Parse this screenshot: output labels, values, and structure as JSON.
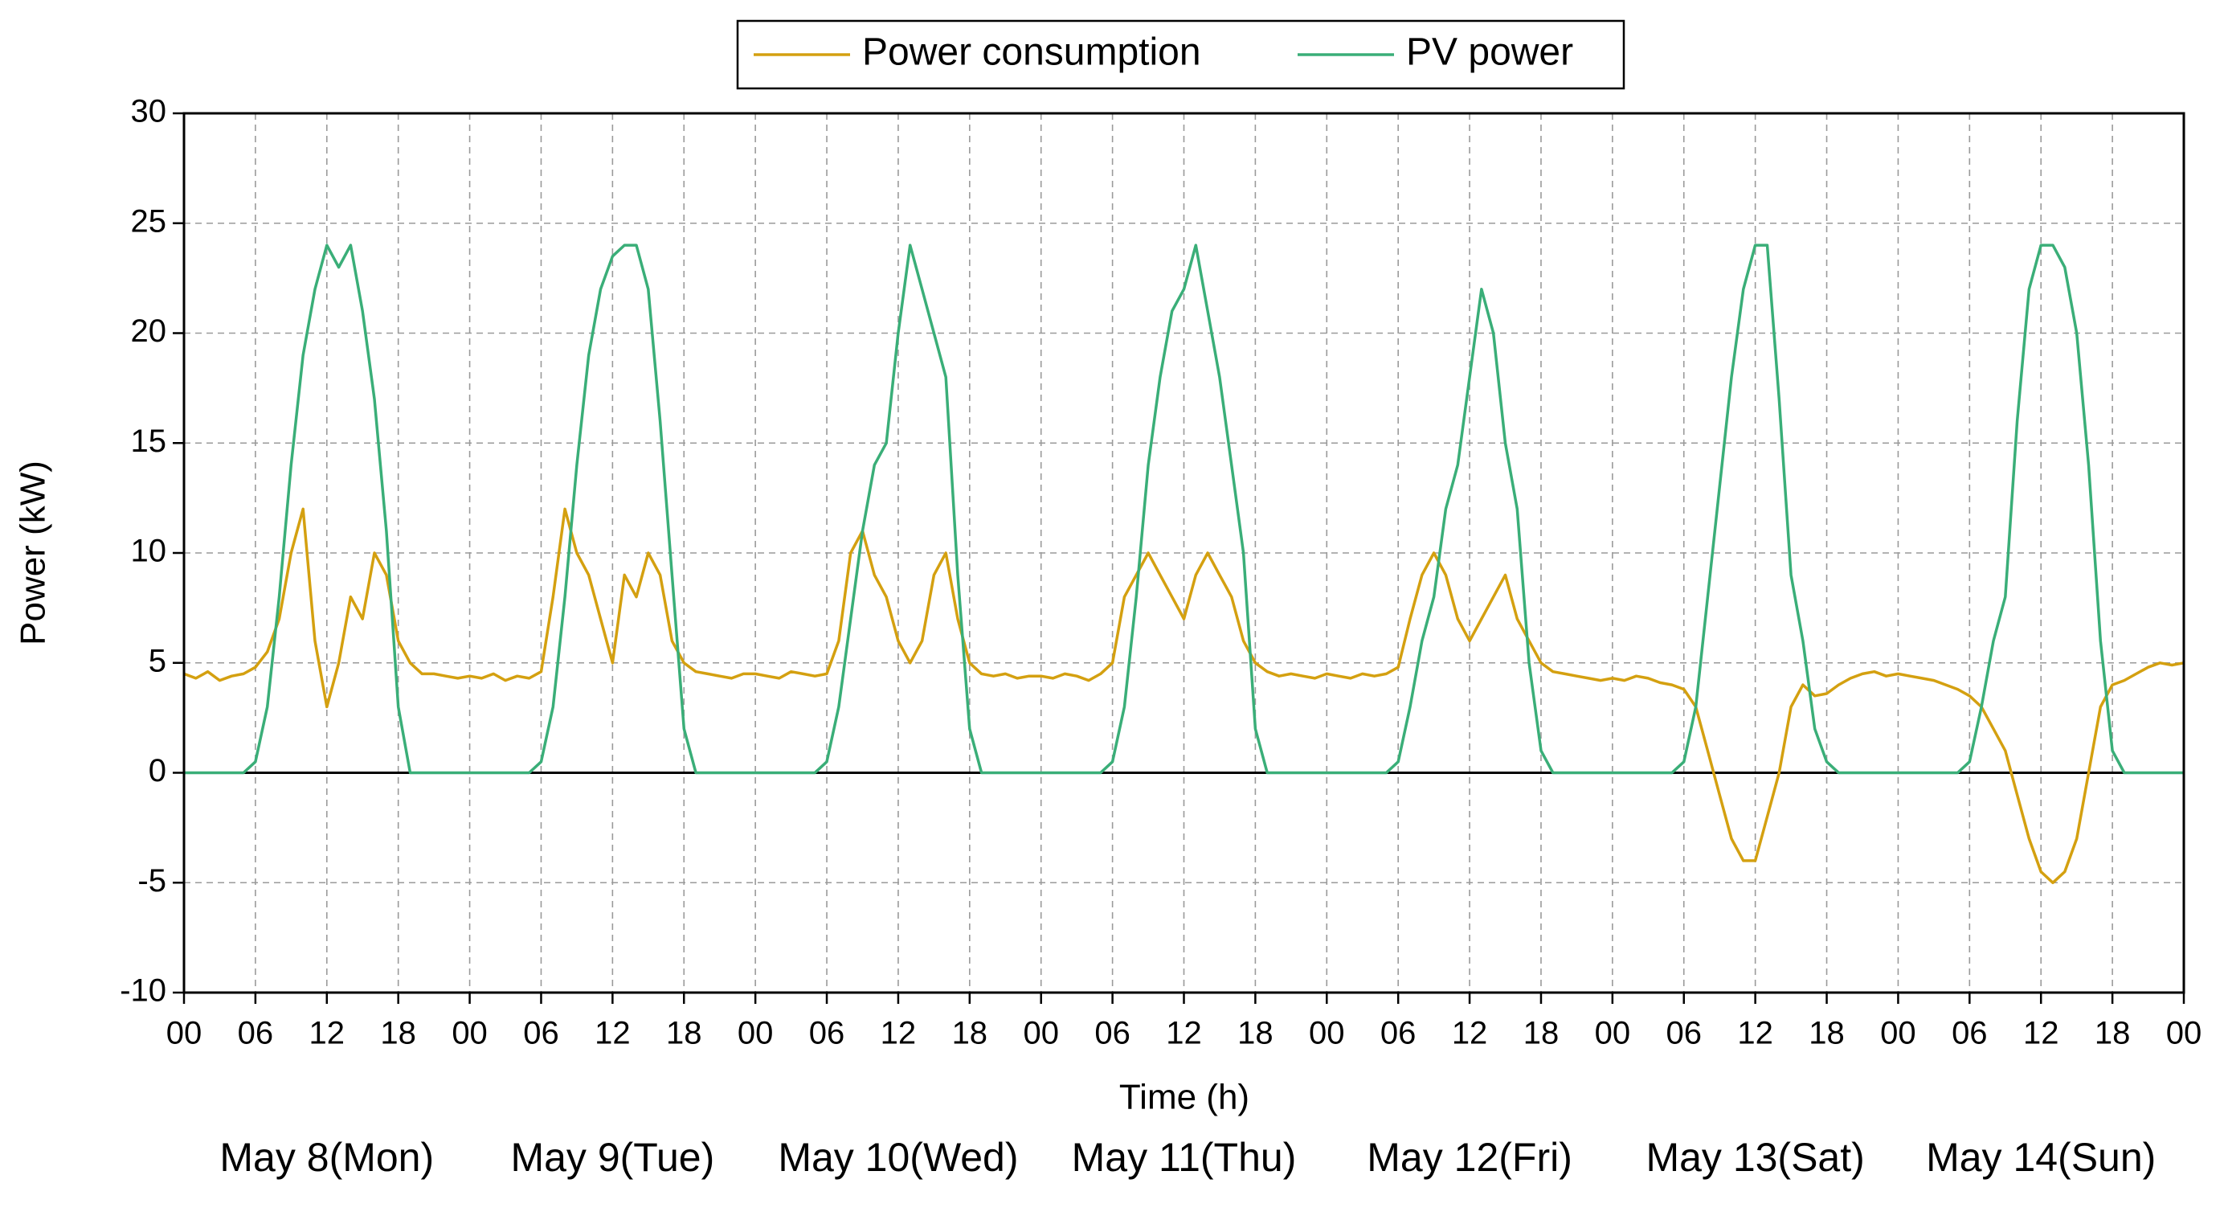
{
  "chart_data": {
    "type": "line",
    "xlabel": "Time (h)",
    "ylabel": "Power (kW)",
    "annotations": [
      "May 8(Mon)",
      "May 9(Tue)",
      "May 10(Wed)",
      "May 11(Thu)",
      "May 12(Fri)",
      "May 13(Sat)",
      "May 14(Sun)"
    ],
    "x": [
      0,
      1,
      2,
      3,
      4,
      5,
      6,
      7,
      8,
      9,
      10,
      11,
      12,
      13,
      14,
      15,
      16,
      17,
      18,
      19,
      20,
      21,
      22,
      23,
      24,
      25,
      26,
      27,
      28,
      29,
      30,
      31,
      32,
      33,
      34,
      35,
      36,
      37,
      38,
      39,
      40,
      41,
      42,
      43,
      44,
      45,
      46,
      47,
      48,
      49,
      50,
      51,
      52,
      53,
      54,
      55,
      56,
      57,
      58,
      59,
      60,
      61,
      62,
      63,
      64,
      65,
      66,
      67,
      68,
      69,
      70,
      71,
      72,
      73,
      74,
      75,
      76,
      77,
      78,
      79,
      80,
      81,
      82,
      83,
      84,
      85,
      86,
      87,
      88,
      89,
      90,
      91,
      92,
      93,
      94,
      95,
      96,
      97,
      98,
      99,
      100,
      101,
      102,
      103,
      104,
      105,
      106,
      107,
      108,
      109,
      110,
      111,
      112,
      113,
      114,
      115,
      116,
      117,
      118,
      119,
      120,
      121,
      122,
      123,
      124,
      125,
      126,
      127,
      128,
      129,
      130,
      131,
      132,
      133,
      134,
      135,
      136,
      137,
      138,
      139,
      140,
      141,
      142,
      143,
      144,
      145,
      146,
      147,
      148,
      149,
      150,
      151,
      152,
      153,
      154,
      155,
      156,
      157,
      158,
      159,
      160,
      161,
      162,
      163,
      164,
      165,
      166,
      167,
      168
    ],
    "series": [
      {
        "name": "Power consumption",
        "color": "#d4a010",
        "values": [
          4.5,
          4.3,
          4.6,
          4.2,
          4.4,
          4.5,
          4.8,
          5.5,
          7,
          10,
          12,
          6,
          3,
          5,
          8,
          7,
          10,
          9,
          6,
          5,
          4.5,
          4.5,
          4.4,
          4.3,
          4.4,
          4.3,
          4.5,
          4.2,
          4.4,
          4.3,
          4.6,
          8,
          12,
          10,
          9,
          7,
          5,
          9,
          8,
          10,
          9,
          6,
          5,
          4.6,
          4.5,
          4.4,
          4.3,
          4.5,
          4.5,
          4.4,
          4.3,
          4.6,
          4.5,
          4.4,
          4.5,
          6,
          10,
          11,
          9,
          8,
          6,
          5,
          6,
          9,
          10,
          7,
          5,
          4.5,
          4.4,
          4.5,
          4.3,
          4.4,
          4.4,
          4.3,
          4.5,
          4.4,
          4.2,
          4.5,
          5,
          8,
          9,
          10,
          9,
          8,
          7,
          9,
          10,
          9,
          8,
          6,
          5,
          4.6,
          4.4,
          4.5,
          4.4,
          4.3,
          4.5,
          4.4,
          4.3,
          4.5,
          4.4,
          4.5,
          4.8,
          7,
          9,
          10,
          9,
          7,
          6,
          7,
          8,
          9,
          7,
          6,
          5,
          4.6,
          4.5,
          4.4,
          4.3,
          4.2,
          4.3,
          4.2,
          4.4,
          4.3,
          4.1,
          4.0,
          3.8,
          3,
          1,
          -1,
          -3,
          -4,
          -4,
          -2,
          0,
          3,
          4,
          3.5,
          3.6,
          4,
          4.3,
          4.5,
          4.6,
          4.4,
          4.5,
          4.4,
          4.3,
          4.2,
          4.0,
          3.8,
          3.5,
          3,
          2,
          1,
          -1,
          -3,
          -4.5,
          -5,
          -4.5,
          -3,
          0,
          3,
          4,
          4.2,
          4.5,
          4.8,
          5,
          4.9,
          5
        ]
      },
      {
        "name": "PV power",
        "color": "#3aae78",
        "values": [
          0,
          0,
          0,
          0,
          0,
          0,
          0.5,
          3,
          8,
          14,
          19,
          22,
          24,
          23,
          24,
          21,
          17,
          11,
          3,
          0,
          0,
          0,
          0,
          0,
          0,
          0,
          0,
          0,
          0,
          0,
          0.5,
          3,
          8,
          14,
          19,
          22,
          23.5,
          24,
          24,
          22,
          16,
          9,
          2,
          0,
          0,
          0,
          0,
          0,
          0,
          0,
          0,
          0,
          0,
          0,
          0.5,
          3,
          7,
          11,
          14,
          15,
          20,
          24,
          22,
          20,
          18,
          9,
          2,
          0,
          0,
          0,
          0,
          0,
          0,
          0,
          0,
          0,
          0,
          0,
          0.5,
          3,
          8,
          14,
          18,
          21,
          22,
          24,
          21,
          18,
          14,
          10,
          2,
          0,
          0,
          0,
          0,
          0,
          0,
          0,
          0,
          0,
          0,
          0,
          0.5,
          3,
          6,
          8,
          12,
          14,
          18,
          22,
          20,
          15,
          12,
          5,
          1,
          0,
          0,
          0,
          0,
          0,
          0,
          0,
          0,
          0,
          0,
          0,
          0.5,
          3,
          8,
          13,
          18,
          22,
          24,
          24,
          17,
          9,
          6,
          2,
          0.5,
          0,
          0,
          0,
          0,
          0,
          0,
          0,
          0,
          0,
          0,
          0,
          0.5,
          3,
          6,
          8,
          16,
          22,
          24,
          24,
          23,
          20,
          14,
          6,
          1,
          0,
          0,
          0,
          0,
          0,
          0
        ]
      }
    ],
    "xlim": [
      0,
      168
    ],
    "xticks": [
      {
        "value": 0,
        "label": "00"
      },
      {
        "value": 6,
        "label": "06"
      },
      {
        "value": 12,
        "label": "12"
      },
      {
        "value": 18,
        "label": "18"
      },
      {
        "value": 24,
        "label": "00"
      },
      {
        "value": 30,
        "label": "06"
      },
      {
        "value": 36,
        "label": "12"
      },
      {
        "value": 42,
        "label": "18"
      },
      {
        "value": 48,
        "label": "00"
      },
      {
        "value": 54,
        "label": "06"
      },
      {
        "value": 60,
        "label": "12"
      },
      {
        "value": 66,
        "label": "18"
      },
      {
        "value": 72,
        "label": "00"
      },
      {
        "value": 78,
        "label": "06"
      },
      {
        "value": 84,
        "label": "12"
      },
      {
        "value": 90,
        "label": "18"
      },
      {
        "value": 96,
        "label": "00"
      },
      {
        "value": 102,
        "label": "06"
      },
      {
        "value": 108,
        "label": "12"
      },
      {
        "value": 114,
        "label": "18"
      },
      {
        "value": 120,
        "label": "00"
      },
      {
        "value": 126,
        "label": "06"
      },
      {
        "value": 132,
        "label": "12"
      },
      {
        "value": 138,
        "label": "18"
      },
      {
        "value": 144,
        "label": "00"
      },
      {
        "value": 150,
        "label": "06"
      },
      {
        "value": 156,
        "label": "12"
      },
      {
        "value": 162,
        "label": "18"
      },
      {
        "value": 168,
        "label": "00"
      }
    ],
    "ylim": [
      -10,
      30
    ],
    "yticks": [
      -10,
      -5,
      0,
      5,
      10,
      15,
      20,
      25,
      30
    ],
    "grid": true,
    "legend": "top"
  }
}
